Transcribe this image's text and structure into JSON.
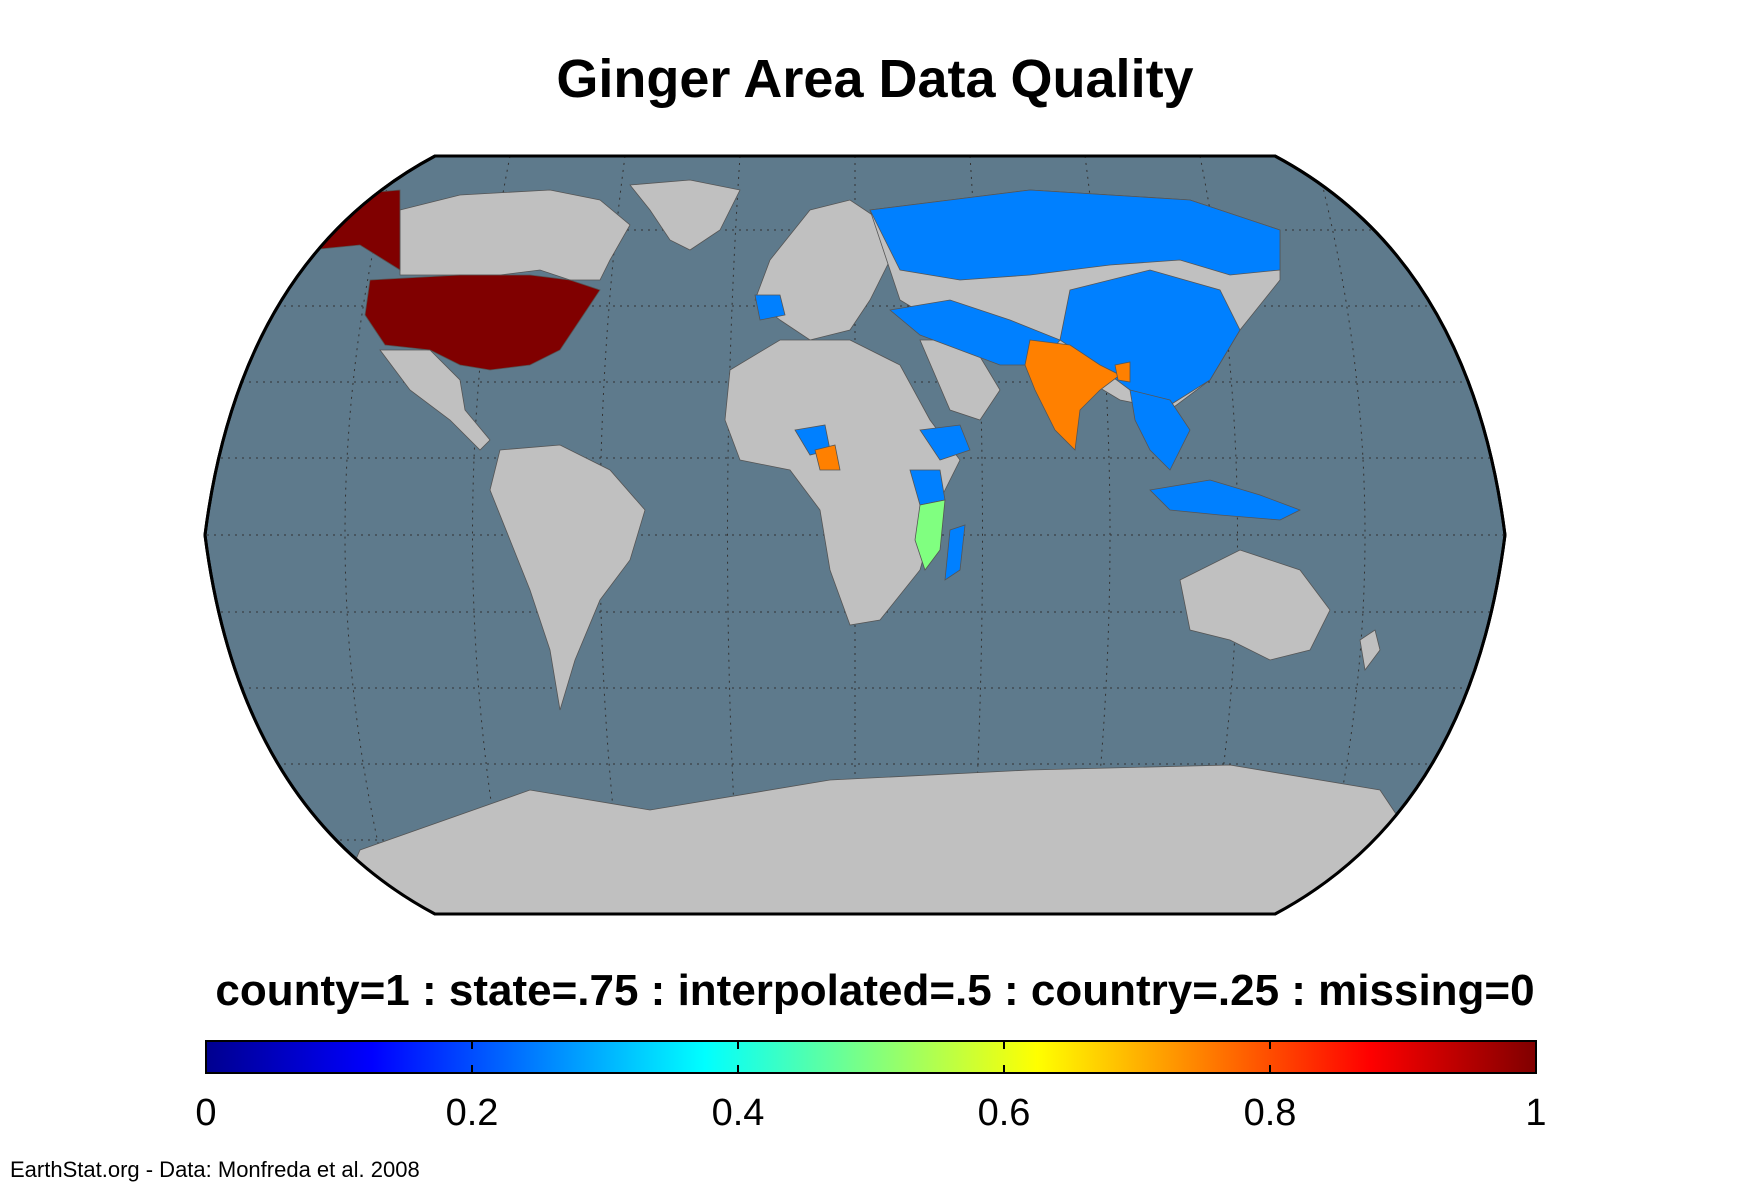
{
  "title": "Ginger Area Data Quality",
  "legend": {
    "caption": "county=1 : state=.75 : interpolated=.5 : country=.25 : missing=0",
    "ticks": [
      "0",
      "0.2",
      "0.4",
      "0.6",
      "0.8",
      "1"
    ],
    "range": [
      0,
      1
    ],
    "colormap": [
      "#00008f",
      "#0000ff",
      "#0080ff",
      "#00ffff",
      "#80ff80",
      "#ffff00",
      "#ff8000",
      "#ff0000",
      "#800000"
    ]
  },
  "credit": "EarthStat.org - Data: Monfreda et al. 2008",
  "map": {
    "projection": "Robinson",
    "ocean_color": "#5e7a8c",
    "land_color": "#c0c0c0",
    "graticule": "dotted",
    "regions": [
      {
        "name": "United States",
        "value": 1,
        "color": "#800000"
      },
      {
        "name": "Alaska",
        "value": 1,
        "color": "#800000"
      },
      {
        "name": "India",
        "value": 0.75,
        "color": "#ff8000"
      },
      {
        "name": "Bangladesh",
        "value": 0.75,
        "color": "#ff8000"
      },
      {
        "name": "Cameroon",
        "value": 0.75,
        "color": "#ff8000"
      },
      {
        "name": "Malawi",
        "value": 0.5,
        "color": "#80ff80"
      },
      {
        "name": "Mozambique",
        "value": 0.5,
        "color": "#80ff80"
      },
      {
        "name": "Russia",
        "value": 0.25,
        "color": "#0080ff"
      },
      {
        "name": "China",
        "value": 0.25,
        "color": "#0080ff"
      },
      {
        "name": "Southeast Asia",
        "value": 0.25,
        "color": "#0080ff"
      },
      {
        "name": "Indonesia",
        "value": 0.25,
        "color": "#0080ff"
      },
      {
        "name": "Middle East",
        "value": 0.25,
        "color": "#0080ff"
      },
      {
        "name": "Ethiopia",
        "value": 0.25,
        "color": "#0080ff"
      },
      {
        "name": "Tanzania",
        "value": 0.25,
        "color": "#0080ff"
      },
      {
        "name": "Madagascar",
        "value": 0.25,
        "color": "#0080ff"
      },
      {
        "name": "Nigeria",
        "value": 0.25,
        "color": "#0080ff"
      },
      {
        "name": "Spain",
        "value": 0.25,
        "color": "#0080ff"
      }
    ]
  }
}
